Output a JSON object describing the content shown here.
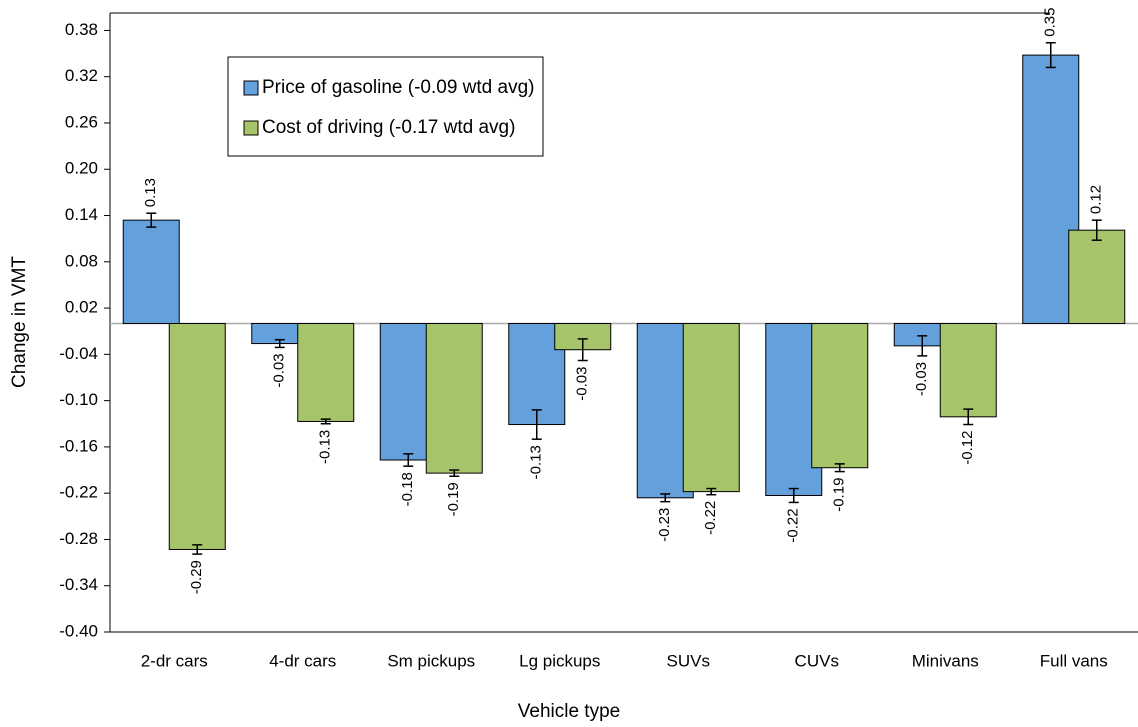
{
  "chart_data": {
    "type": "bar",
    "categories": [
      "2-dr cars",
      "4-dr cars",
      "Sm pickups",
      "Lg pickups",
      "SUVs",
      "CUVs",
      "Minivans",
      "Full vans"
    ],
    "series": [
      {
        "name": "Price of gasoline (-0.09 wtd avg)",
        "color": "#63a0dc",
        "values": [
          0.134,
          -0.026,
          -0.177,
          -0.131,
          -0.226,
          -0.223,
          -0.029,
          0.348
        ],
        "value_labels": [
          "0.13",
          "-0.03",
          "-0.18",
          "-0.13",
          "-0.23",
          "-0.22",
          "-0.03",
          "0.35"
        ],
        "errors": [
          0.009,
          0.005,
          0.008,
          0.019,
          0.005,
          0.009,
          0.013,
          0.016
        ]
      },
      {
        "name": "Cost of driving (-0.17 wtd avg)",
        "color": "#a6c46a",
        "values": [
          -0.293,
          -0.127,
          -0.194,
          -0.034,
          -0.218,
          -0.187,
          -0.121,
          0.121
        ],
        "value_labels": [
          "-0.29",
          "-0.13",
          "-0.19",
          "-0.03",
          "-0.22",
          "-0.19",
          "-0.12",
          "0.12"
        ],
        "errors": [
          0.006,
          0.003,
          0.004,
          0.014,
          0.004,
          0.005,
          0.01,
          0.013
        ]
      }
    ],
    "x_label": "Vehicle type",
    "y_label": "Change in VMT",
    "ylim": [
      -0.4,
      0.4
    ],
    "yticks": [
      {
        "value": -0.4,
        "label": "-0.40"
      },
      -0.34,
      -0.28,
      -0.22,
      -0.16,
      {
        "value": -0.1,
        "label": "-0.10"
      },
      -0.04,
      0.02,
      0.08,
      0.14,
      {
        "value": 0.2,
        "label": "0.20"
      },
      0.26,
      0.32,
      0.38
    ],
    "legend": "upper left",
    "grid": false
  }
}
